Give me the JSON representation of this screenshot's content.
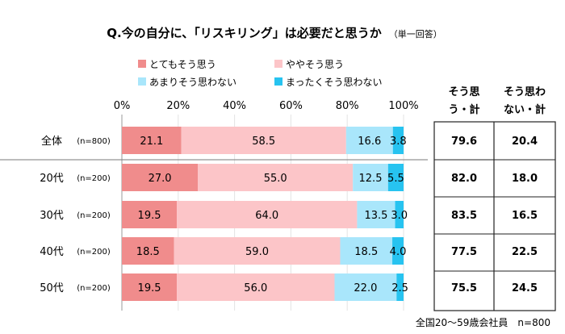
{
  "chart_data": {
    "type": "bar",
    "orientation": "horizontal",
    "stacked": true,
    "title": "Q.今の自分に、「リスキリング」は必要だと思うか",
    "subtitle": "（単一回答）",
    "categories": [
      "全体",
      "20代",
      "30代",
      "40代",
      "50代"
    ],
    "sample_sizes": [
      "(n=800)",
      "(n=200)",
      "(n=200)",
      "(n=200)",
      "(n=200)"
    ],
    "series": [
      {
        "name": "とてもそう思う",
        "color": "#f08c8c",
        "values": [
          21.1,
          27.0,
          19.5,
          18.5,
          19.5
        ]
      },
      {
        "name": "ややそう思う",
        "color": "#fcc5c8",
        "values": [
          58.5,
          55.0,
          64.0,
          59.0,
          56.0
        ]
      },
      {
        "name": "あまりそう思わない",
        "color": "#a9e6fb",
        "values": [
          16.6,
          12.5,
          13.5,
          18.5,
          22.0
        ]
      },
      {
        "name": "まったくそう思わない",
        "color": "#27c3f0",
        "values": [
          3.8,
          5.5,
          3.0,
          4.0,
          2.5
        ]
      }
    ],
    "value_labels": [
      [
        "21.1",
        "58.5",
        "16.6",
        "3.8"
      ],
      [
        "27.0",
        "55.0",
        "12.5",
        "5.5"
      ],
      [
        "19.5",
        "64.0",
        "13.5",
        "3.0"
      ],
      [
        "18.5",
        "59.0",
        "18.5",
        "4.0"
      ],
      [
        "19.5",
        "56.0",
        "22.0",
        "2.5"
      ]
    ],
    "xlim": [
      0,
      100
    ],
    "xticks": [
      "0%",
      "20%",
      "40%",
      "60%",
      "80%",
      "100%"
    ],
    "legend_position": "top",
    "summary_table": {
      "headers": [
        [
          "そう思",
          "う・計"
        ],
        [
          "そう思わ",
          "ない・計"
        ]
      ],
      "rows": [
        [
          "79.6",
          "20.4"
        ],
        [
          "82.0",
          "18.0"
        ],
        [
          "83.5",
          "16.5"
        ],
        [
          "77.5",
          "22.5"
        ],
        [
          "75.5",
          "24.5"
        ]
      ]
    },
    "footnote": "全国20～59歳会社員　n=800"
  }
}
